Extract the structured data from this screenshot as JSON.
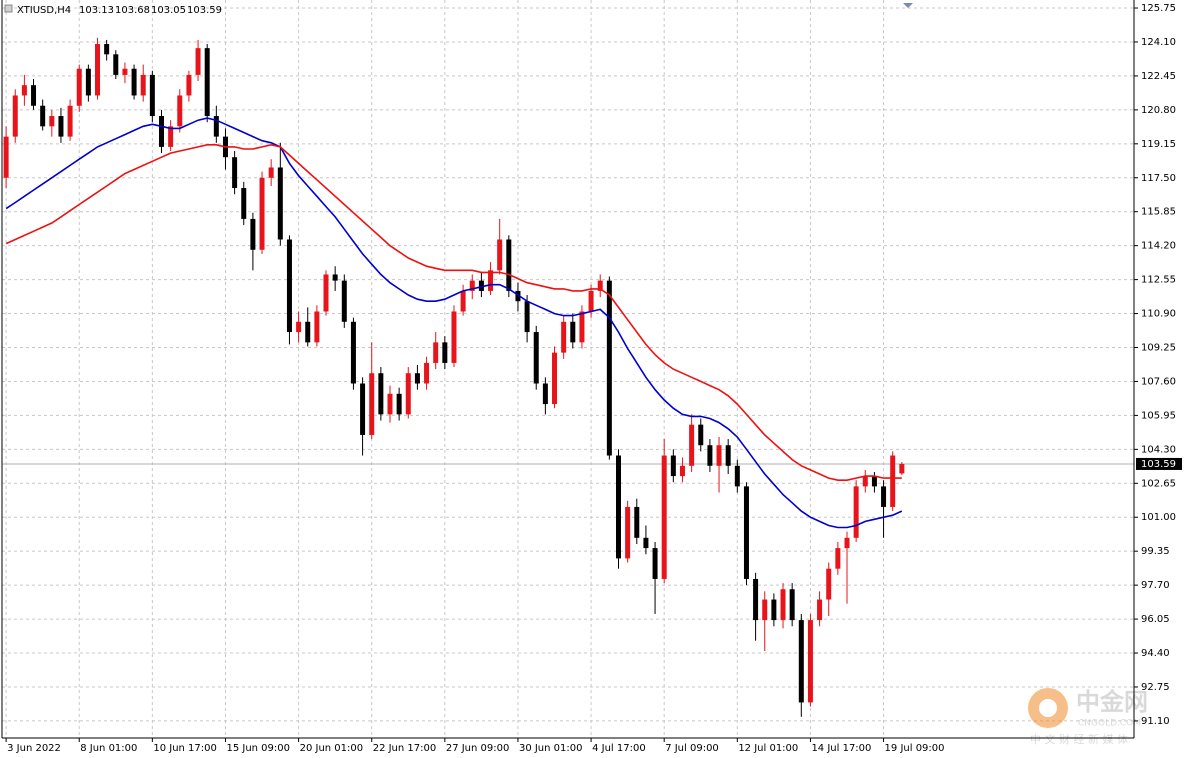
{
  "chart_data": {
    "type": "candlestick",
    "title": "XTIUSD,H4",
    "last_ohlc": [
      103.13,
      103.68,
      103.05,
      103.59
    ],
    "current_price": 103.59,
    "up_color": "#e8141b",
    "down_color": "#000000",
    "grid": true,
    "ylim": [
      90.27,
      126.14
    ],
    "yticks": [
      125.75,
      {
        "value": 124.1,
        "label": "124.10"
      },
      122.45,
      {
        "value": 120.8,
        "label": "120.80"
      },
      119.15,
      {
        "value": 117.5,
        "label": "117.50"
      },
      115.85,
      {
        "value": 114.2,
        "label": "114.20"
      },
      112.55,
      {
        "value": 110.9,
        "label": "110.90"
      },
      109.25,
      {
        "value": 107.6,
        "label": "107.60"
      },
      105.95,
      {
        "value": 104.3,
        "label": "104.30"
      },
      102.65,
      {
        "value": 101.0,
        "label": "101.00"
      },
      99.35,
      {
        "value": 97.7,
        "label": "97.70"
      },
      96.05,
      {
        "value": 94.4,
        "label": "94.40"
      },
      92.75,
      {
        "value": 91.1,
        "label": "91.10"
      }
    ],
    "xlim": [
      -0.45,
      123.4
    ],
    "xticks": [
      {
        "value": 0,
        "label": "3 Jun 2022"
      },
      {
        "value": 8,
        "label": "8 Jun 01:00"
      },
      {
        "value": 16,
        "label": "10 Jun 17:00"
      },
      {
        "value": 24,
        "label": "15 Jun 09:00"
      },
      {
        "value": 32,
        "label": "20 Jun 01:00"
      },
      {
        "value": 40,
        "label": "22 Jun 17:00"
      },
      {
        "value": 48,
        "label": "27 Jun 09:00"
      },
      {
        "value": 56,
        "label": "30 Jun 01:00"
      },
      {
        "value": 64,
        "label": "4 Jul 17:00"
      },
      {
        "value": 72,
        "label": "7 Jul 09:00"
      },
      {
        "value": 80,
        "label": "12 Jul 01:00"
      },
      {
        "value": 88,
        "label": "14 Jul 17:00"
      },
      {
        "value": 96,
        "label": "19 Jul 09:00"
      }
    ],
    "open": [
      117.5,
      119.5,
      121.5,
      122.0,
      121.0,
      120.0,
      120.5,
      119.5,
      121.0,
      122.8,
      121.5,
      124.0,
      123.5,
      122.5,
      122.8,
      121.5,
      122.5,
      120.5,
      119.0,
      120.0,
      121.5,
      122.5,
      123.8,
      120.5,
      119.5,
      118.5,
      117.0,
      115.5,
      114.0,
      117.5,
      118.0,
      114.5,
      110.0,
      110.5,
      109.5,
      111.0,
      112.8,
      112.5,
      110.5,
      107.5,
      105.0,
      108.0,
      106.0,
      107.0,
      106.0,
      108.0,
      107.5,
      108.5,
      109.5,
      108.5,
      111.0,
      112.0,
      112.5,
      112.0,
      113.0,
      114.5,
      112.0,
      111.5,
      110.0,
      107.5,
      106.5,
      109.0,
      110.5,
      109.5,
      111.0,
      112.0,
      112.5,
      104.0,
      99.0,
      101.5,
      100.0,
      99.5,
      98.0,
      104.0,
      103.0,
      103.5,
      105.5,
      104.5,
      103.5,
      104.5,
      103.5,
      102.5,
      98.0,
      96.0,
      97.0,
      96.0,
      97.5,
      96.0,
      92.0,
      96.0,
      97.0,
      98.5,
      99.5,
      100.0,
      102.5,
      103.0,
      102.5,
      101.5,
      103.13
    ],
    "high": [
      120.0,
      121.8,
      122.5,
      122.3,
      121.3,
      120.8,
      120.9,
      121.3,
      123.0,
      123.0,
      124.3,
      124.2,
      123.7,
      123.1,
      123.0,
      123.0,
      122.7,
      120.8,
      120.3,
      121.8,
      122.7,
      124.2,
      124.0,
      121.0,
      119.9,
      118.8,
      117.3,
      115.8,
      117.8,
      118.4,
      119.2,
      114.7,
      111.0,
      111.2,
      111.3,
      113.0,
      113.2,
      112.8,
      110.7,
      107.8,
      109.5,
      108.3,
      107.4,
      107.3,
      108.3,
      108.4,
      108.8,
      110.0,
      109.8,
      111.3,
      112.3,
      112.8,
      112.9,
      113.4,
      115.5,
      114.7,
      112.4,
      111.8,
      110.3,
      107.8,
      109.3,
      110.8,
      110.9,
      111.3,
      112.3,
      112.8,
      112.7,
      104.3,
      101.8,
      101.9,
      100.6,
      99.8,
      104.8,
      104.3,
      103.9,
      106.0,
      105.8,
      104.8,
      104.9,
      104.8,
      103.8,
      102.7,
      98.3,
      97.4,
      97.3,
      97.8,
      97.8,
      96.3,
      96.3,
      97.4,
      98.8,
      99.8,
      100.3,
      102.8,
      103.3,
      103.2,
      102.8,
      104.2,
      103.68
    ],
    "low": [
      117.0,
      119.2,
      121.0,
      120.8,
      119.8,
      119.5,
      119.2,
      119.3,
      120.7,
      121.2,
      121.3,
      123.2,
      122.3,
      122.1,
      121.3,
      121.2,
      120.2,
      118.7,
      118.8,
      119.7,
      121.2,
      122.2,
      120.2,
      119.2,
      117.9,
      116.7,
      115.2,
      113.0,
      113.8,
      117.1,
      114.2,
      109.4,
      109.5,
      109.3,
      109.3,
      110.8,
      112.0,
      110.2,
      107.2,
      104.0,
      104.8,
      105.7,
      105.6,
      105.7,
      105.8,
      107.2,
      107.2,
      108.2,
      108.2,
      108.3,
      110.8,
      111.6,
      111.7,
      111.8,
      112.8,
      111.7,
      111.0,
      109.5,
      107.2,
      106.0,
      106.3,
      108.7,
      109.2,
      109.2,
      110.7,
      111.7,
      103.8,
      98.5,
      98.8,
      99.7,
      99.2,
      96.3,
      97.8,
      102.7,
      102.7,
      103.2,
      104.2,
      103.2,
      102.2,
      103.1,
      102.2,
      97.7,
      95.0,
      94.5,
      95.7,
      95.6,
      95.7,
      91.3,
      91.8,
      95.7,
      96.2,
      98.2,
      96.8,
      99.8,
      102.2,
      102.2,
      100.0,
      101.3,
      103.05
    ],
    "close": [
      119.5,
      121.5,
      122.0,
      121.0,
      120.0,
      120.5,
      119.5,
      121.0,
      122.8,
      121.5,
      124.0,
      123.5,
      122.5,
      122.8,
      121.5,
      122.5,
      120.5,
      119.0,
      120.0,
      121.5,
      122.5,
      123.8,
      120.5,
      119.5,
      118.5,
      117.0,
      115.5,
      114.0,
      117.5,
      118.0,
      114.5,
      110.0,
      110.5,
      109.5,
      111.0,
      112.8,
      112.5,
      110.5,
      107.5,
      105.0,
      108.0,
      106.0,
      107.0,
      106.0,
      108.0,
      107.5,
      108.5,
      109.5,
      108.5,
      111.0,
      112.0,
      112.5,
      112.0,
      113.0,
      114.5,
      112.0,
      111.5,
      110.0,
      107.5,
      106.5,
      109.0,
      110.5,
      109.5,
      111.0,
      112.0,
      112.5,
      104.0,
      99.0,
      101.5,
      100.0,
      99.5,
      98.0,
      104.0,
      103.0,
      103.5,
      105.5,
      104.5,
      103.5,
      104.5,
      103.5,
      102.5,
      98.0,
      96.0,
      97.0,
      96.0,
      97.5,
      96.0,
      92.0,
      96.0,
      97.0,
      98.5,
      99.5,
      100.0,
      102.5,
      103.0,
      102.5,
      101.5,
      104.0,
      103.59
    ],
    "moving_averages": [
      {
        "color": "#0000cc",
        "values": [
          116.0,
          116.3,
          116.6,
          116.9,
          117.2,
          117.5,
          117.8,
          118.1,
          118.4,
          118.7,
          119.0,
          119.2,
          119.4,
          119.6,
          119.8,
          120.0,
          120.1,
          120.0,
          119.9,
          119.9,
          120.1,
          120.3,
          120.4,
          120.3,
          120.1,
          119.9,
          119.7,
          119.5,
          119.3,
          119.2,
          119.0,
          118.2,
          117.6,
          117.1,
          116.6,
          116.1,
          115.6,
          115.0,
          114.4,
          113.8,
          113.3,
          112.8,
          112.4,
          112.1,
          111.8,
          111.6,
          111.5,
          111.5,
          111.6,
          111.8,
          112.0,
          112.1,
          112.2,
          112.3,
          112.3,
          112.1,
          111.8,
          111.5,
          111.3,
          111.1,
          110.9,
          110.8,
          110.8,
          110.9,
          111.0,
          111.1,
          110.7,
          110.0,
          109.2,
          108.5,
          107.8,
          107.2,
          106.7,
          106.3,
          106.0,
          105.9,
          105.9,
          105.8,
          105.6,
          105.3,
          104.9,
          104.3,
          103.7,
          103.1,
          102.6,
          102.1,
          101.7,
          101.3,
          101.0,
          100.8,
          100.6,
          100.5,
          100.5,
          100.6,
          100.8,
          100.9,
          101.0,
          101.1,
          101.3
        ]
      },
      {
        "color": "#ee1111",
        "values": [
          114.3,
          114.5,
          114.7,
          114.9,
          115.1,
          115.3,
          115.6,
          115.9,
          116.2,
          116.5,
          116.8,
          117.1,
          117.4,
          117.7,
          117.9,
          118.1,
          118.3,
          118.5,
          118.7,
          118.8,
          118.9,
          119.0,
          119.1,
          119.1,
          119.0,
          119.0,
          118.9,
          118.9,
          119.0,
          119.1,
          119.0,
          118.6,
          118.2,
          117.8,
          117.4,
          117.0,
          116.6,
          116.2,
          115.8,
          115.4,
          115.0,
          114.6,
          114.2,
          113.9,
          113.6,
          113.4,
          113.2,
          113.1,
          113.0,
          113.0,
          113.0,
          113.0,
          112.9,
          112.9,
          112.9,
          112.8,
          112.6,
          112.4,
          112.3,
          112.2,
          112.1,
          112.1,
          112.0,
          112.0,
          112.1,
          112.1,
          111.8,
          111.2,
          110.6,
          110.0,
          109.4,
          108.9,
          108.5,
          108.2,
          108.0,
          107.8,
          107.6,
          107.4,
          107.2,
          106.9,
          106.5,
          106.0,
          105.5,
          105.0,
          104.6,
          104.2,
          103.8,
          103.5,
          103.3,
          103.1,
          102.9,
          102.8,
          102.8,
          102.9,
          103.0,
          103.0,
          102.9,
          102.9,
          102.9
        ]
      }
    ]
  },
  "watermark": {
    "name": "中金网",
    "domain": "CNGOLD.COM",
    "slogan": "中 文 财 经 新 媒 体"
  }
}
